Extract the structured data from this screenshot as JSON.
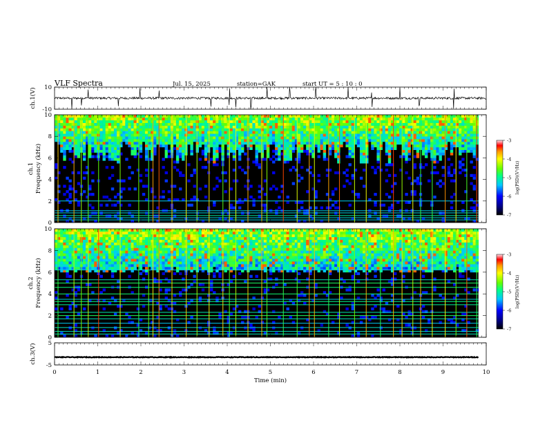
{
  "header": {
    "title": "VLF  Spectra",
    "date": "Jul.  15,  2025",
    "station": "station=GAK",
    "start": "start  UT  =    5  :  10 : 0"
  },
  "chart_data": [
    {
      "id": "ch1-waveform",
      "type": "line",
      "ylabel": "ch.1(V)",
      "ylim": [
        -10,
        10
      ],
      "yticks": [
        "10",
        "-10"
      ],
      "xlim": [
        0,
        10
      ],
      "baseline": 0,
      "noise_amplitude": 1,
      "color": "#000000",
      "spike_times": [
        0.4,
        0.62,
        0.78,
        1.48,
        1.98,
        2.42,
        3.62,
        4.05,
        4.2,
        4.55,
        4.92,
        5.45,
        6.05,
        6.8,
        7.35,
        8.0,
        8.45,
        9.25
      ]
    },
    {
      "id": "ch1-spectrogram",
      "type": "heatmap",
      "ylabel_line1": "ch.1",
      "ylabel_line2": "Frequency  (kHz)",
      "ylim": [
        0,
        10
      ],
      "yticks": [
        "0",
        "2",
        "4",
        "6",
        "8",
        "10"
      ],
      "xlim": [
        0,
        9.82
      ],
      "colorbar": {
        "label": "log(PSD)(V²/Hz)",
        "ticks": [
          "-3",
          "-4",
          "-5",
          "-6",
          "-7"
        ],
        "range": [
          -7,
          -3
        ]
      },
      "noise_floor_khz": [
        5.5,
        7.5
      ],
      "hum_lines_khz": [
        0.25,
        0.45,
        0.65,
        0.9,
        1.1,
        2.0
      ],
      "bright_lines": [
        0.08,
        0.45,
        0.62,
        0.78,
        1.02,
        1.52,
        1.95,
        2.18,
        2.28,
        2.42,
        2.72,
        3.05,
        3.3,
        3.58,
        3.9,
        4.05,
        4.2,
        4.48,
        4.8,
        4.92,
        5.3,
        5.62,
        5.9,
        6.02,
        6.35,
        6.6,
        6.95,
        7.22,
        7.55,
        7.85,
        8.05,
        8.3,
        8.48,
        8.75,
        9.05,
        9.3,
        9.55,
        9.78
      ]
    },
    {
      "id": "ch2-spectrogram",
      "type": "heatmap",
      "ylabel_line1": "ch.2",
      "ylabel_line2": "Frequency  (kHz)",
      "ylim": [
        0,
        10
      ],
      "yticks": [
        "0",
        "2",
        "4",
        "6",
        "8",
        "10"
      ],
      "xlim": [
        0,
        9.82
      ],
      "colorbar": {
        "label": "log(PSD)(V²/Hz)",
        "ticks": [
          "-3",
          "-4",
          "-5",
          "-6",
          "-7"
        ],
        "range": [
          -7,
          -3
        ]
      },
      "noise_floor_khz": [
        5.9,
        6.4
      ],
      "hum_lines_khz": [
        0.3,
        0.55,
        0.9,
        1.3,
        1.7,
        2.0,
        2.3,
        3.0,
        3.3,
        3.5,
        4.0,
        4.6,
        5.0,
        5.3,
        6.2
      ],
      "bright_lines": [
        0.08,
        0.45,
        0.62,
        0.78,
        1.02,
        1.52,
        1.95,
        2.18,
        2.28,
        2.42,
        2.72,
        3.05,
        3.3,
        3.58,
        3.9,
        4.05,
        4.2,
        4.48,
        4.8,
        4.92,
        5.3,
        5.62,
        5.9,
        6.02,
        6.35,
        6.6,
        6.95,
        7.22,
        7.55,
        7.85,
        8.05,
        8.3,
        8.48,
        8.75,
        9.05,
        9.3,
        9.55,
        9.78
      ]
    },
    {
      "id": "ch3-waveform",
      "type": "line",
      "ylabel": "ch.3(V)",
      "ylim": [
        -5,
        5
      ],
      "yticks": [
        "5",
        "-5"
      ],
      "xlim": [
        0,
        9.82
      ],
      "baseline": -1.5,
      "noise_amplitude": 0.15,
      "color": "#000000",
      "xlabel": "Time  (min)",
      "xticks": [
        "0",
        "1",
        "2",
        "3",
        "4",
        "5",
        "6",
        "7",
        "8",
        "9",
        "10"
      ],
      "full_xlim": [
        0,
        10
      ]
    }
  ]
}
